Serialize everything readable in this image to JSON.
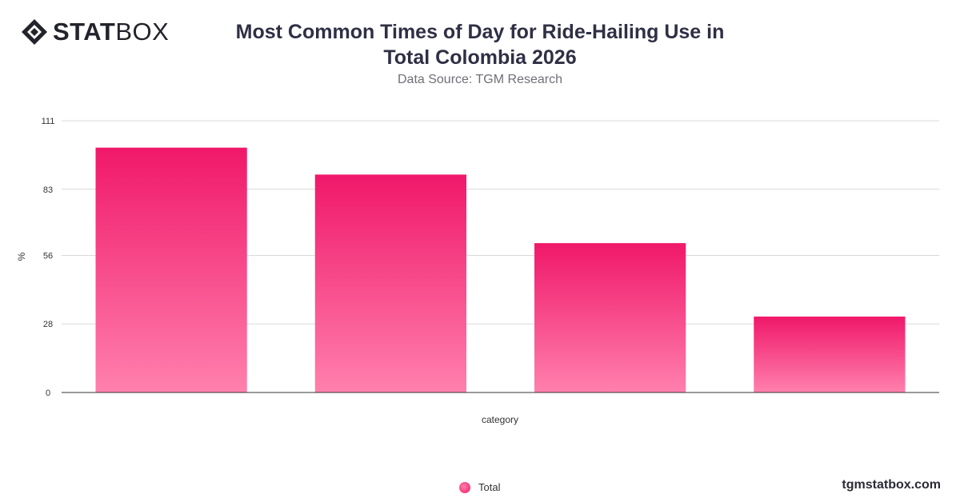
{
  "brand": {
    "logo_bold": "STAT",
    "logo_light": "BOX",
    "footer_url": "tgmstatbox.com"
  },
  "header": {
    "title_line1": "Most Common Times of Day for Ride-Hailing Use in",
    "title_line2": "Total Colombia 2026",
    "subtitle": "Data Source: TGM Research"
  },
  "legend": {
    "label": "Total"
  },
  "colors": {
    "bar_top": "#f0186a",
    "bar_bottom": "#ff80ad",
    "grid": "#d9d9d9",
    "axis": "#333333"
  },
  "chart_data": {
    "type": "bar",
    "title": "Most Common Times of Day for Ride-Hailing Use in Total Colombia 2026",
    "subtitle": "Data Source: TGM Research",
    "xlabel": "category",
    "ylabel": "%",
    "categories": [
      "",
      "",
      "",
      ""
    ],
    "series": [
      {
        "name": "Total",
        "values": [
          100,
          89,
          61,
          31
        ]
      }
    ],
    "ylim": [
      0,
      111
    ],
    "yticks": [
      0,
      28,
      56,
      83,
      111
    ],
    "grid": true,
    "legend_position": "bottom-center"
  }
}
